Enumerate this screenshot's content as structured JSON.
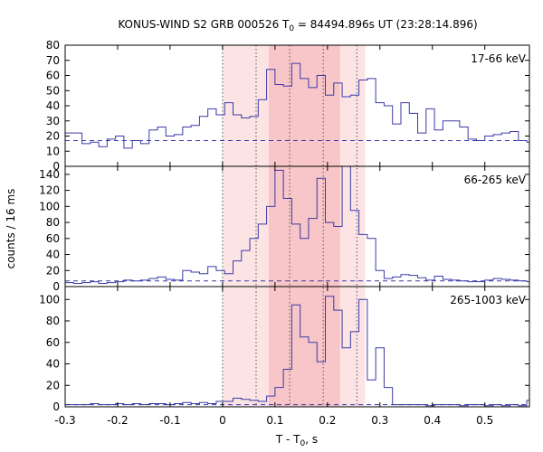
{
  "title_parts": {
    "pre": "KONUS-WIND S2 GRB 000526 T",
    "sub": "0",
    "post": " = 84494.896s UT (23:28:14.896)"
  },
  "xlabel_parts": {
    "pre": "T - T",
    "sub": "0",
    "post": ", s"
  },
  "ylabel": "counts / 16 ms",
  "colors": {
    "histogram": "#3a3aa8",
    "background": "#3a3aa8",
    "shade_light": "#fde4e4",
    "shade_dark": "#f8c6c8",
    "vline": "#555555"
  },
  "chart_data": {
    "type": "step-histogram",
    "bin_width_s": 0.016,
    "xlim": [
      -0.3,
      0.585
    ],
    "xticks": [
      -0.3,
      -0.2,
      -0.1,
      0,
      0.1,
      0.2,
      0.3,
      0.4,
      0.5
    ],
    "xtick_labels": [
      "-0.3",
      "-0.2",
      "-0.1",
      "0",
      "0.1",
      "0.2",
      "0.3",
      "0.4",
      "0.5"
    ],
    "vlines": [
      0,
      0.064,
      0.128,
      0.192,
      0.256
    ],
    "intervals": [
      {
        "x0": 0.0,
        "x1": 0.272,
        "shade": "light"
      },
      {
        "x0": 0.088,
        "x1": 0.224,
        "shade": "dark"
      }
    ],
    "panels": [
      {
        "label": "17-66 keV",
        "ylim": [
          0,
          80
        ],
        "yticks": [
          0,
          10,
          20,
          30,
          40,
          50,
          60,
          70,
          80
        ],
        "background": 17,
        "bin_start": -0.3,
        "values": [
          22,
          22,
          15,
          16,
          13,
          18,
          20,
          12,
          17,
          15,
          24,
          26,
          20,
          21,
          26,
          27,
          33,
          38,
          34,
          42,
          34,
          32,
          33,
          44,
          64,
          54,
          53,
          68,
          58,
          52,
          60,
          47,
          55,
          46,
          47,
          57,
          58,
          42,
          40,
          28,
          42,
          35,
          22,
          38,
          24,
          30,
          30,
          26,
          18,
          17,
          20,
          21,
          22,
          23,
          17,
          16
        ]
      },
      {
        "label": "66-265 keV",
        "ylim": [
          0,
          150
        ],
        "yticks": [
          0,
          20,
          40,
          60,
          80,
          100,
          120,
          140
        ],
        "background": 7,
        "bin_start": -0.3,
        "values": [
          5,
          4,
          5,
          6,
          4,
          5,
          6,
          8,
          7,
          8,
          10,
          12,
          9,
          8,
          20,
          18,
          16,
          25,
          20,
          16,
          32,
          45,
          60,
          78,
          100,
          145,
          110,
          78,
          60,
          85,
          135,
          80,
          75,
          150,
          95,
          65,
          60,
          20,
          10,
          12,
          15,
          14,
          11,
          8,
          13,
          9,
          8,
          7,
          6,
          6,
          8,
          10,
          9,
          8,
          7,
          6
        ]
      },
      {
        "label": "265-1003 keV",
        "ylim": [
          0,
          112
        ],
        "yticks": [
          0,
          20,
          40,
          60,
          80,
          100
        ],
        "background": 2,
        "bin_start": -0.3,
        "values": [
          2,
          2,
          2,
          3,
          2,
          2,
          3,
          2,
          3,
          2,
          3,
          3,
          2,
          3,
          4,
          3,
          4,
          3,
          5,
          5,
          8,
          7,
          6,
          5,
          10,
          18,
          35,
          95,
          65,
          60,
          42,
          103,
          90,
          55,
          70,
          100,
          25,
          55,
          18,
          2,
          2,
          2,
          2,
          1,
          2,
          2,
          2,
          1,
          2,
          2,
          1,
          2,
          1,
          2,
          1,
          6
        ]
      }
    ]
  }
}
